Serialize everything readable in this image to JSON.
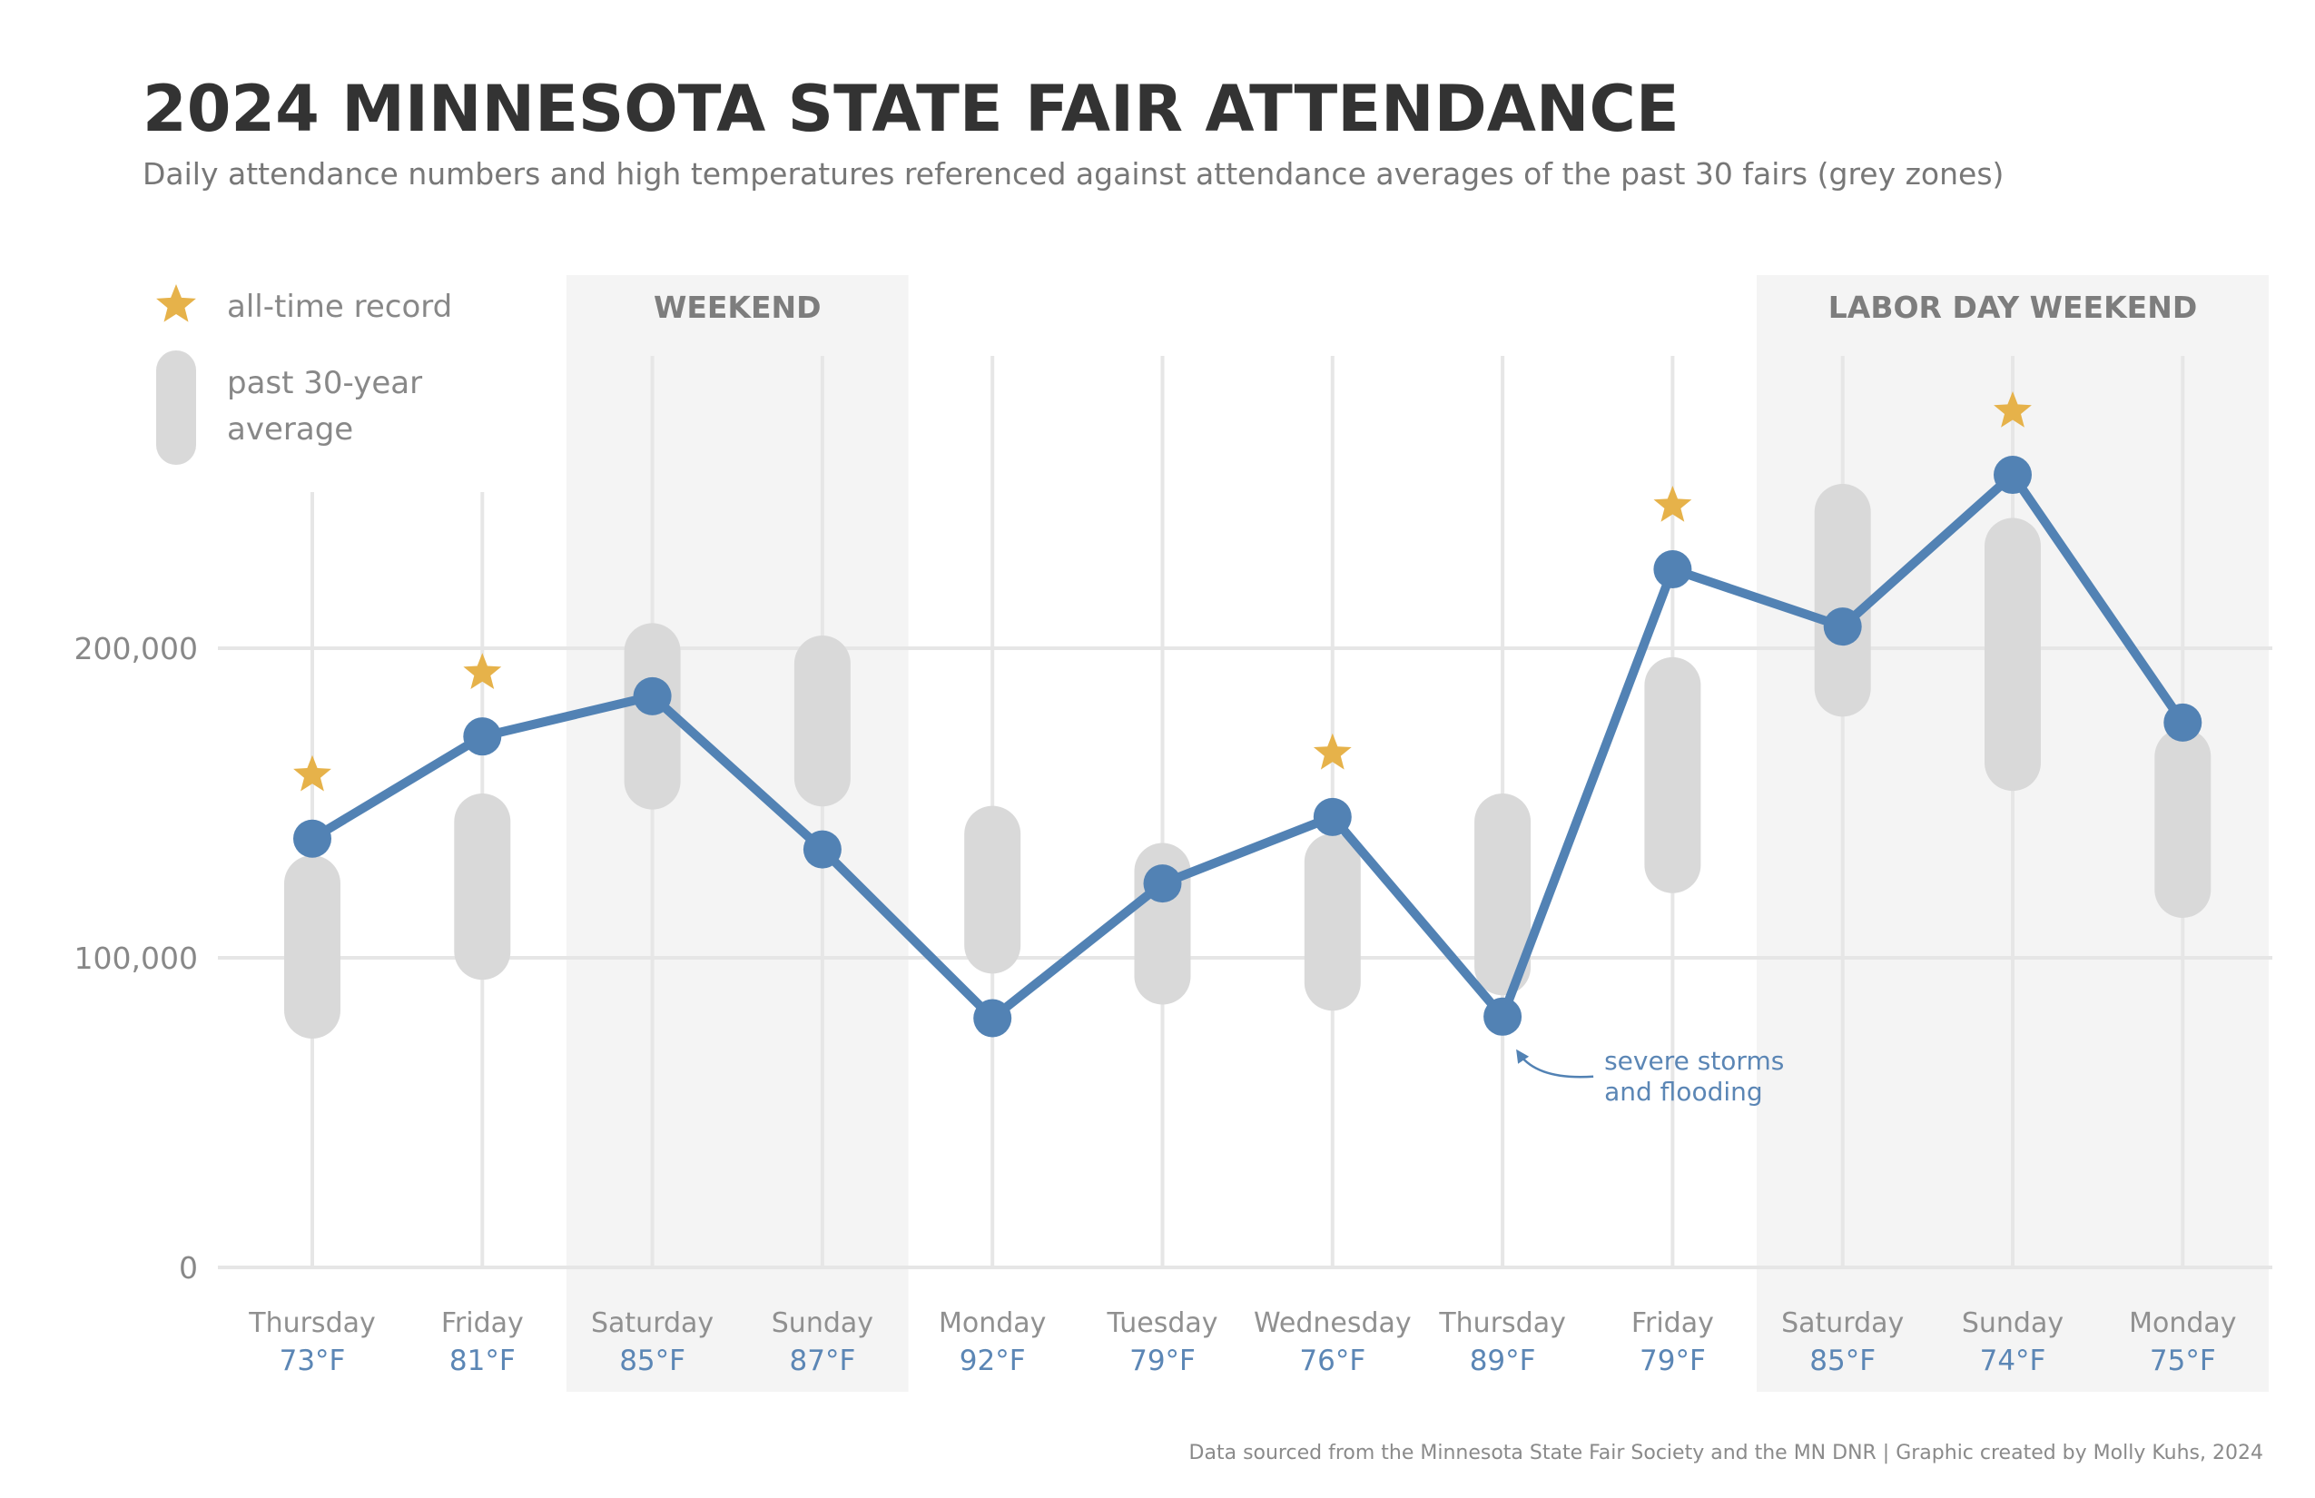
{
  "title": "2024 MINNESOTA STATE FAIR ATTENDANCE",
  "subtitle": "Daily attendance numbers and high temperatures referenced against attendance averages of the past 30 fairs (grey zones)",
  "legend": {
    "record_label": "all-time record",
    "average_label_line1": "past 30-year",
    "average_label_line2": "average"
  },
  "footer": "Data sourced from the Minnesota State Fair Society and the MN DNR | Graphic created by Molly Kuhs, 2024",
  "colors": {
    "line": "#5282b4",
    "avg_band": "#d9d9d9",
    "weekend_bg": "#f4f4f4",
    "star": "#e6b24a",
    "grid": "#e6e6e6"
  },
  "chart_data": {
    "type": "line",
    "ylim": [
      0,
      265000
    ],
    "y_ticks": [
      {
        "value": 0,
        "label": "0"
      },
      {
        "value": 100000,
        "label": "100,000"
      },
      {
        "value": 200000,
        "label": "200,000"
      }
    ],
    "categories": [
      "Thursday",
      "Friday",
      "Saturday",
      "Sunday",
      "Monday",
      "Tuesday",
      "Wednesday",
      "Thursday",
      "Friday",
      "Saturday",
      "Sunday",
      "Monday"
    ],
    "temperatures": [
      "73°F",
      "81°F",
      "85°F",
      "87°F",
      "92°F",
      "79°F",
      "76°F",
      "89°F",
      "79°F",
      "85°F",
      "74°F",
      "75°F"
    ],
    "attendance": [
      138500,
      171500,
      184500,
      135000,
      80500,
      124000,
      145500,
      81000,
      225500,
      207000,
      256000,
      176000
    ],
    "avg_range_low": [
      83000,
      102000,
      157000,
      158000,
      104000,
      94000,
      92000,
      97000,
      130000,
      187000,
      163000,
      122000
    ],
    "avg_range_high": [
      124000,
      144000,
      199000,
      195000,
      140000,
      128000,
      131000,
      144000,
      188000,
      244000,
      233000,
      165000
    ],
    "all_time_record": [
      true,
      true,
      false,
      false,
      false,
      false,
      true,
      false,
      true,
      false,
      true,
      false
    ],
    "bands": [
      {
        "label": "WEEKEND",
        "start_index": 2,
        "end_index": 3
      },
      {
        "label": "LABOR DAY WEEKEND",
        "start_index": 9,
        "end_index": 11
      }
    ],
    "annotations": [
      {
        "index": 7,
        "line1": "severe storms",
        "line2": "and flooding"
      }
    ]
  }
}
